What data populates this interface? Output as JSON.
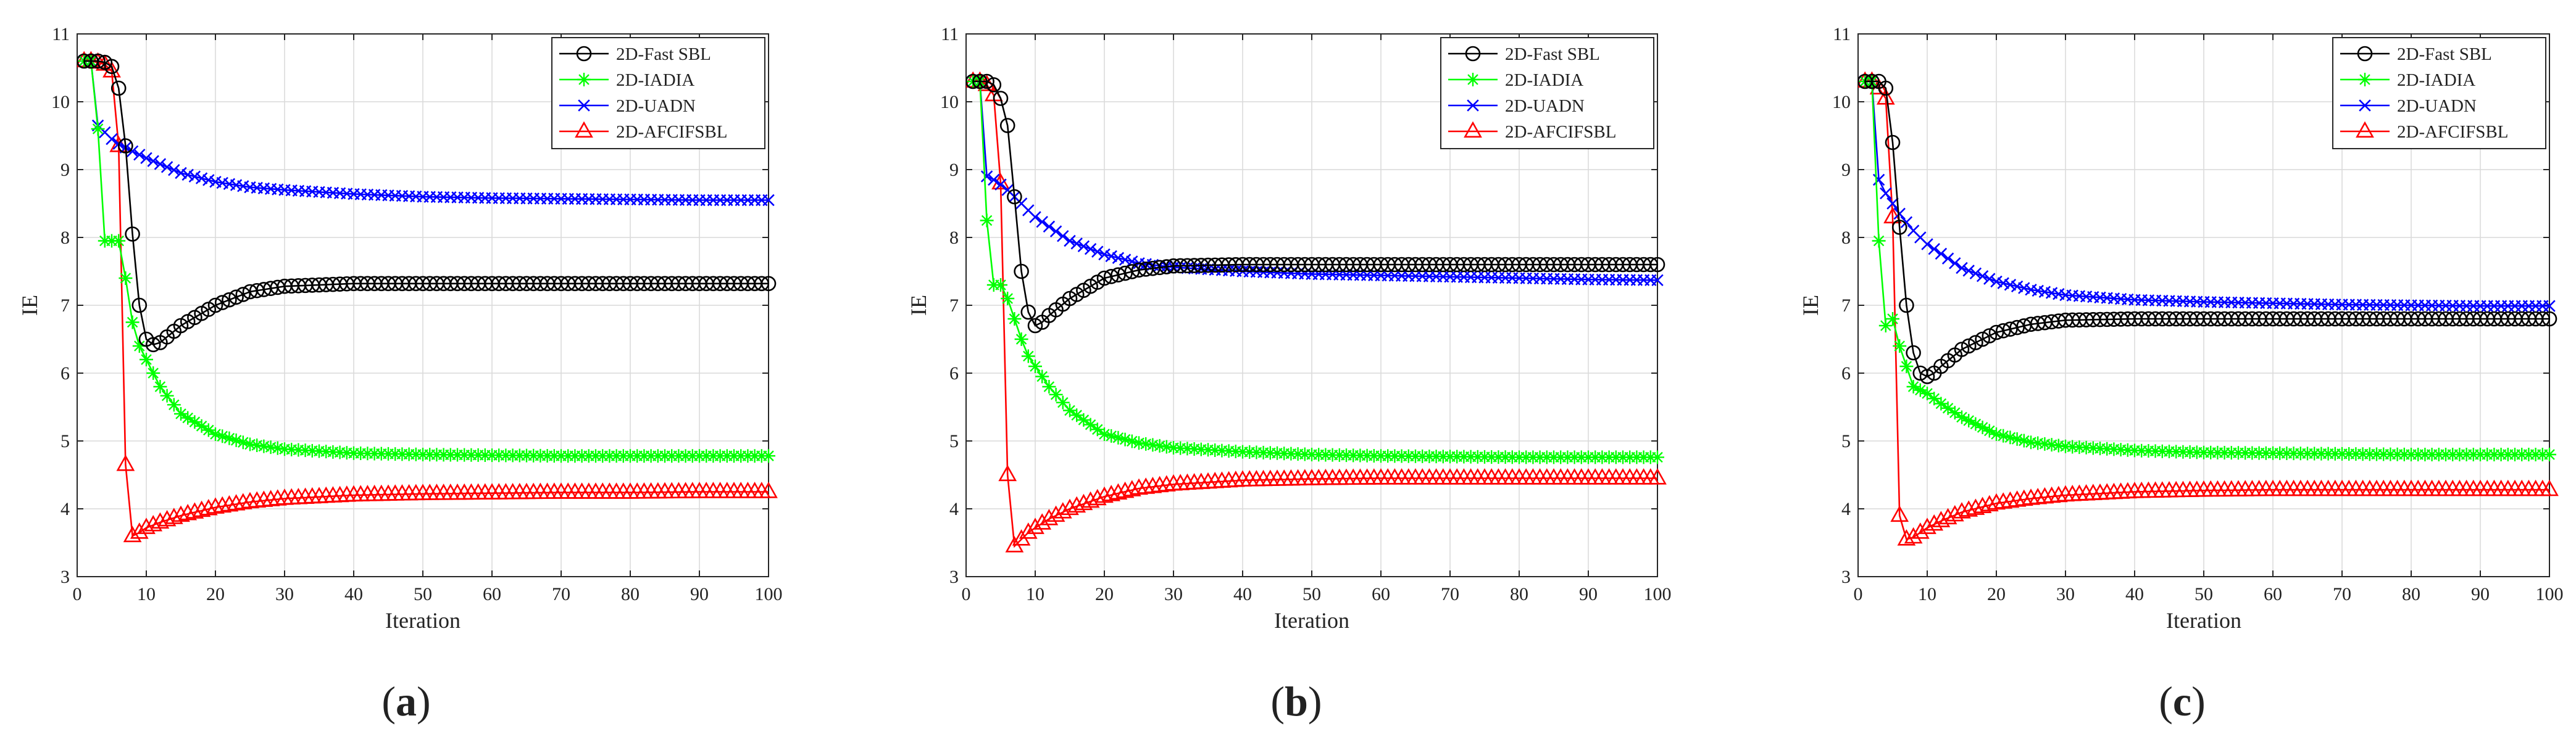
{
  "chart_data": [
    {
      "type": "line",
      "panel": "a",
      "caption_letter": "a",
      "xlabel": "Iteration",
      "ylabel": "IE",
      "xlim": [
        0,
        100
      ],
      "ylim": [
        3,
        11
      ],
      "x_ticks": [
        0,
        10,
        20,
        30,
        40,
        50,
        60,
        70,
        80,
        90,
        100
      ],
      "y_ticks": [
        3,
        4,
        5,
        6,
        7,
        8,
        9,
        10,
        11
      ],
      "grid": true,
      "legend_position": "top-right",
      "series": [
        {
          "name": "2D-Fast SBL",
          "color": "#000000",
          "marker": "circle",
          "x": [
            1,
            2,
            3,
            4,
            5,
            6,
            7,
            8,
            9,
            10,
            11,
            12,
            15,
            20,
            25,
            30,
            40,
            50,
            60,
            70,
            80,
            90,
            100
          ],
          "values": [
            10.6,
            10.6,
            10.6,
            10.58,
            10.52,
            10.2,
            9.35,
            8.05,
            7.0,
            6.5,
            6.42,
            6.45,
            6.7,
            7.0,
            7.2,
            7.28,
            7.32,
            7.32,
            7.32,
            7.32,
            7.32,
            7.32,
            7.32
          ]
        },
        {
          "name": "2D-IADIA",
          "color": "#00ff00",
          "marker": "star",
          "x": [
            1,
            2,
            3,
            4,
            5,
            6,
            7,
            8,
            9,
            10,
            12,
            15,
            20,
            25,
            30,
            40,
            50,
            60,
            70,
            80,
            90,
            100
          ],
          "values": [
            10.6,
            10.6,
            9.6,
            7.95,
            7.95,
            7.95,
            7.4,
            6.75,
            6.4,
            6.2,
            5.8,
            5.4,
            5.1,
            4.95,
            4.88,
            4.82,
            4.8,
            4.79,
            4.78,
            4.78,
            4.78,
            4.78
          ]
        },
        {
          "name": "2D-UADN",
          "color": "#0000ff",
          "marker": "x",
          "x": [
            1,
            2,
            3,
            4,
            5,
            6,
            8,
            10,
            15,
            20,
            25,
            30,
            40,
            50,
            60,
            70,
            80,
            90,
            100
          ],
          "values": [
            10.6,
            10.6,
            9.65,
            9.55,
            9.45,
            9.38,
            9.27,
            9.17,
            8.95,
            8.82,
            8.74,
            8.7,
            8.64,
            8.6,
            8.58,
            8.57,
            8.56,
            8.55,
            8.55
          ]
        },
        {
          "name": "2D-AFCIFSBL",
          "color": "#ff0000",
          "marker": "triangle",
          "x": [
            1,
            2,
            3,
            4,
            5,
            6,
            7,
            8,
            9,
            10,
            12,
            15,
            20,
            25,
            30,
            40,
            50,
            60,
            70,
            80,
            90,
            100
          ],
          "values": [
            10.6,
            10.6,
            10.58,
            10.55,
            10.45,
            9.35,
            4.65,
            3.6,
            3.65,
            3.72,
            3.8,
            3.9,
            4.02,
            4.1,
            4.15,
            4.2,
            4.22,
            4.23,
            4.24,
            4.24,
            4.25,
            4.25
          ]
        }
      ]
    },
    {
      "type": "line",
      "panel": "b",
      "caption_letter": "b",
      "xlabel": "Iteration",
      "ylabel": "IE",
      "xlim": [
        0,
        100
      ],
      "ylim": [
        3,
        11
      ],
      "x_ticks": [
        0,
        10,
        20,
        30,
        40,
        50,
        60,
        70,
        80,
        90,
        100
      ],
      "y_ticks": [
        3,
        4,
        5,
        6,
        7,
        8,
        9,
        10,
        11
      ],
      "grid": true,
      "legend_position": "top-right",
      "series": [
        {
          "name": "2D-Fast SBL",
          "color": "#000000",
          "marker": "circle",
          "x": [
            1,
            2,
            3,
            4,
            5,
            6,
            7,
            8,
            9,
            10,
            11,
            12,
            15,
            20,
            25,
            30,
            40,
            50,
            60,
            70,
            80,
            90,
            100
          ],
          "values": [
            10.3,
            10.3,
            10.3,
            10.25,
            10.05,
            9.65,
            8.6,
            7.5,
            6.9,
            6.7,
            6.75,
            6.85,
            7.1,
            7.4,
            7.52,
            7.58,
            7.6,
            7.6,
            7.6,
            7.6,
            7.6,
            7.6,
            7.6
          ]
        },
        {
          "name": "2D-IADIA",
          "color": "#00ff00",
          "marker": "star",
          "x": [
            1,
            2,
            3,
            4,
            5,
            6,
            7,
            8,
            9,
            10,
            12,
            15,
            20,
            25,
            30,
            40,
            50,
            60,
            70,
            80,
            90,
            100
          ],
          "values": [
            10.3,
            10.3,
            8.25,
            7.3,
            7.3,
            7.1,
            6.8,
            6.5,
            6.25,
            6.1,
            5.8,
            5.45,
            5.1,
            4.97,
            4.9,
            4.84,
            4.8,
            4.78,
            4.77,
            4.76,
            4.76,
            4.76
          ]
        },
        {
          "name": "2D-UADN",
          "color": "#0000ff",
          "marker": "x",
          "x": [
            1,
            2,
            3,
            4,
            5,
            6,
            8,
            10,
            15,
            20,
            25,
            30,
            40,
            50,
            60,
            70,
            80,
            90,
            100
          ],
          "values": [
            10.3,
            10.3,
            8.9,
            8.85,
            8.78,
            8.7,
            8.5,
            8.3,
            7.95,
            7.75,
            7.62,
            7.56,
            7.5,
            7.46,
            7.44,
            7.42,
            7.4,
            7.38,
            7.37
          ]
        },
        {
          "name": "2D-AFCIFSBL",
          "color": "#ff0000",
          "marker": "triangle",
          "x": [
            1,
            2,
            3,
            4,
            5,
            6,
            7,
            8,
            9,
            10,
            12,
            15,
            20,
            25,
            30,
            40,
            50,
            60,
            70,
            80,
            90,
            100
          ],
          "values": [
            10.3,
            10.3,
            10.25,
            10.1,
            8.8,
            4.5,
            3.45,
            3.55,
            3.65,
            3.72,
            3.85,
            4.0,
            4.18,
            4.3,
            4.36,
            4.42,
            4.44,
            4.45,
            4.45,
            4.45,
            4.45,
            4.45
          ]
        }
      ]
    },
    {
      "type": "line",
      "panel": "c",
      "caption_letter": "c",
      "xlabel": "Iteration",
      "ylabel": "IE",
      "xlim": [
        0,
        100
      ],
      "ylim": [
        3,
        11
      ],
      "x_ticks": [
        0,
        10,
        20,
        30,
        40,
        50,
        60,
        70,
        80,
        90,
        100
      ],
      "y_ticks": [
        3,
        4,
        5,
        6,
        7,
        8,
        9,
        10,
        11
      ],
      "grid": true,
      "legend_position": "top-right",
      "series": [
        {
          "name": "2D-Fast SBL",
          "color": "#000000",
          "marker": "circle",
          "x": [
            1,
            2,
            3,
            4,
            5,
            6,
            7,
            8,
            9,
            10,
            11,
            12,
            15,
            20,
            25,
            30,
            40,
            50,
            60,
            70,
            80,
            90,
            100
          ],
          "values": [
            10.3,
            10.3,
            10.3,
            10.2,
            9.4,
            8.15,
            7.0,
            6.3,
            6.0,
            5.95,
            6.0,
            6.1,
            6.35,
            6.6,
            6.72,
            6.78,
            6.8,
            6.8,
            6.8,
            6.8,
            6.8,
            6.8,
            6.8
          ]
        },
        {
          "name": "2D-IADIA",
          "color": "#00ff00",
          "marker": "star",
          "x": [
            1,
            2,
            3,
            4,
            5,
            6,
            7,
            8,
            9,
            10,
            12,
            15,
            20,
            25,
            30,
            40,
            50,
            60,
            70,
            80,
            90,
            100
          ],
          "values": [
            10.3,
            10.3,
            7.95,
            6.7,
            6.8,
            6.4,
            6.1,
            5.8,
            5.75,
            5.7,
            5.55,
            5.35,
            5.1,
            4.98,
            4.92,
            4.86,
            4.83,
            4.82,
            4.81,
            4.8,
            4.8,
            4.8
          ]
        },
        {
          "name": "2D-UADN",
          "color": "#0000ff",
          "marker": "x",
          "x": [
            1,
            2,
            3,
            4,
            5,
            6,
            8,
            10,
            15,
            20,
            25,
            30,
            40,
            50,
            60,
            70,
            80,
            90,
            100
          ],
          "values": [
            10.3,
            10.3,
            8.85,
            8.65,
            8.5,
            8.35,
            8.1,
            7.9,
            7.55,
            7.35,
            7.23,
            7.15,
            7.08,
            7.05,
            7.03,
            7.01,
            7.0,
            6.99,
            6.99
          ]
        },
        {
          "name": "2D-AFCIFSBL",
          "color": "#ff0000",
          "marker": "triangle",
          "x": [
            1,
            2,
            3,
            4,
            5,
            6,
            7,
            8,
            9,
            10,
            12,
            15,
            20,
            25,
            30,
            40,
            50,
            60,
            70,
            80,
            90,
            100
          ],
          "values": [
            10.3,
            10.3,
            10.2,
            10.05,
            8.3,
            3.9,
            3.55,
            3.58,
            3.65,
            3.72,
            3.82,
            3.95,
            4.08,
            4.15,
            4.2,
            4.25,
            4.27,
            4.28,
            4.28,
            4.28,
            4.28,
            4.28
          ]
        }
      ]
    }
  ]
}
